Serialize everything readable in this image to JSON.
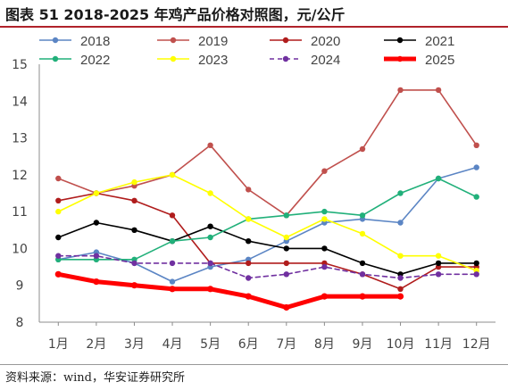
{
  "page": {
    "title": "图表 51 2018-2025 年鸡产品价格对照图，元/公斤",
    "source": "资料来源：wind，华安证券研究所"
  },
  "chart_data": {
    "type": "line",
    "x": [
      "1月",
      "2月",
      "3月",
      "4月",
      "5月",
      "6月",
      "7月",
      "8月",
      "9月",
      "10月",
      "11月",
      "12月"
    ],
    "ylim": [
      8,
      15
    ],
    "yticks": [
      8,
      9,
      10,
      11,
      12,
      13,
      14,
      15
    ],
    "grid": false,
    "legend_position": "top",
    "series": [
      {
        "name": "2018",
        "color": "#5b85c4",
        "width": 1.6,
        "dashed": false,
        "values": [
          9.7,
          9.9,
          9.6,
          9.1,
          9.5,
          9.7,
          10.2,
          10.7,
          10.8,
          10.7,
          11.9,
          12.2
        ]
      },
      {
        "name": "2019",
        "color": "#c0504d",
        "width": 1.6,
        "dashed": false,
        "values": [
          11.9,
          11.5,
          11.7,
          12.0,
          12.8,
          11.6,
          10.9,
          12.1,
          12.7,
          14.3,
          14.3,
          12.8
        ]
      },
      {
        "name": "2020",
        "color": "#b01c1c",
        "width": 1.6,
        "dashed": false,
        "values": [
          11.3,
          11.5,
          11.3,
          10.9,
          9.6,
          9.6,
          9.6,
          9.6,
          9.3,
          8.9,
          9.5,
          9.5
        ]
      },
      {
        "name": "2021",
        "color": "#000000",
        "width": 1.6,
        "dashed": false,
        "values": [
          10.3,
          10.7,
          10.5,
          10.2,
          10.6,
          10.2,
          10.0,
          10.0,
          9.6,
          9.3,
          9.6,
          9.6
        ]
      },
      {
        "name": "2022",
        "color": "#21b07a",
        "width": 1.6,
        "dashed": false,
        "values": [
          9.7,
          9.7,
          9.7,
          10.2,
          10.3,
          10.8,
          10.9,
          11.0,
          10.9,
          11.5,
          11.9,
          11.4
        ]
      },
      {
        "name": "2023",
        "color": "#ffff00",
        "width": 1.6,
        "dashed": false,
        "values": [
          11.0,
          11.5,
          11.8,
          12.0,
          11.5,
          10.8,
          10.3,
          10.8,
          10.4,
          9.8,
          9.8,
          9.4
        ]
      },
      {
        "name": "2024",
        "color": "#7030a0",
        "width": 1.6,
        "dashed": true,
        "values": [
          9.8,
          9.8,
          9.6,
          9.6,
          9.6,
          9.2,
          9.3,
          9.5,
          9.3,
          9.2,
          9.3,
          9.3
        ]
      },
      {
        "name": "2025",
        "color": "#ff0000",
        "width": 5,
        "dashed": false,
        "values": [
          9.3,
          9.1,
          9.0,
          8.9,
          8.9,
          8.7,
          8.4,
          8.7,
          8.7,
          8.7,
          null,
          null
        ]
      }
    ]
  }
}
